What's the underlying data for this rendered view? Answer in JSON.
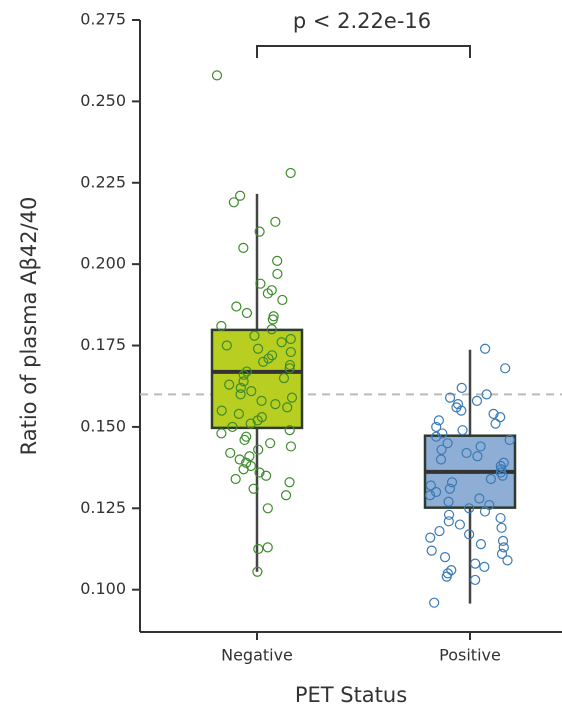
{
  "chart_data": {
    "type": "box",
    "xlabel": "PET Status",
    "ylabel": "Ratio of plasma Aβ42/40",
    "annotation": "p < 2.22e-16",
    "categories": [
      "Negative",
      "Positive"
    ],
    "ylim": [
      0.087,
      0.275
    ],
    "yticks": [
      {
        "value": 0.1,
        "label": "0.100"
      },
      {
        "value": 0.125,
        "label": "0.125"
      },
      {
        "value": 0.15,
        "label": "0.150"
      },
      {
        "value": 0.175,
        "label": "0.175"
      },
      {
        "value": 0.2,
        "label": "0.200"
      },
      {
        "value": 0.225,
        "label": "0.225"
      },
      {
        "value": 0.25,
        "label": "0.250"
      },
      {
        "value": 0.275,
        "label": "0.275"
      }
    ],
    "hline": 0.16,
    "series": [
      {
        "name": "Negative",
        "color": "#b8cf22",
        "point_color": "#3d8b2a",
        "whisker_low": 0.1055,
        "q1": 0.1497,
        "median": 0.1669,
        "q3": 0.1798,
        "whisker_high": 0.2216,
        "points": [
          0.258,
          0.228,
          0.221,
          0.219,
          0.213,
          0.21,
          0.205,
          0.201,
          0.197,
          0.194,
          0.192,
          0.191,
          0.189,
          0.187,
          0.185,
          0.184,
          0.183,
          0.181,
          0.18,
          0.178,
          0.177,
          0.176,
          0.175,
          0.174,
          0.173,
          0.172,
          0.171,
          0.17,
          0.169,
          0.168,
          0.167,
          0.166,
          0.165,
          0.164,
          0.163,
          0.162,
          0.161,
          0.16,
          0.159,
          0.158,
          0.157,
          0.156,
          0.155,
          0.154,
          0.153,
          0.152,
          0.151,
          0.15,
          0.149,
          0.148,
          0.147,
          0.146,
          0.145,
          0.144,
          0.143,
          0.142,
          0.141,
          0.14,
          0.139,
          0.138,
          0.137,
          0.136,
          0.135,
          0.134,
          0.133,
          0.131,
          0.129,
          0.125,
          0.113,
          0.1125,
          0.1055
        ]
      },
      {
        "name": "Positive",
        "color": "#8eaed6",
        "point_color": "#3a7ab5",
        "whisker_low": 0.0957,
        "q1": 0.1252,
        "median": 0.1362,
        "q3": 0.1473,
        "whisker_high": 0.1737,
        "points": [
          0.174,
          0.168,
          0.162,
          0.16,
          0.159,
          0.158,
          0.157,
          0.156,
          0.155,
          0.154,
          0.153,
          0.152,
          0.151,
          0.15,
          0.149,
          0.148,
          0.147,
          0.146,
          0.145,
          0.144,
          0.143,
          0.142,
          0.141,
          0.14,
          0.139,
          0.138,
          0.137,
          0.136,
          0.135,
          0.134,
          0.133,
          0.132,
          0.131,
          0.13,
          0.129,
          0.128,
          0.127,
          0.126,
          0.125,
          0.124,
          0.123,
          0.122,
          0.121,
          0.12,
          0.119,
          0.118,
          0.117,
          0.116,
          0.115,
          0.114,
          0.113,
          0.112,
          0.111,
          0.11,
          0.109,
          0.108,
          0.107,
          0.106,
          0.105,
          0.104,
          0.103,
          0.096
        ]
      }
    ]
  }
}
